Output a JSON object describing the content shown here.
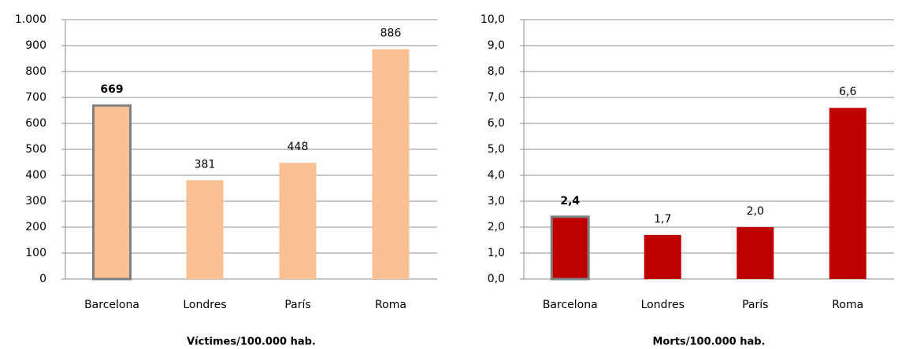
{
  "chart_data": [
    {
      "type": "bar",
      "x_label": "Víctimes/100.000 hab.",
      "categories": [
        "Barcelona",
        "Londres",
        "París",
        "Roma"
      ],
      "values": [
        669,
        381,
        448,
        886
      ],
      "color": "#f9c093",
      "highlight": 0,
      "ylim": [
        0,
        1000
      ],
      "yticks": [
        0,
        100,
        200,
        300,
        400,
        500,
        600,
        700,
        800,
        900,
        {
          "value": 1000,
          "label": "1.000"
        }
      ],
      "grid": true
    },
    {
      "type": "bar",
      "x_label": "Morts/100.000 hab.",
      "categories": [
        "Barcelona",
        "Londres",
        "París",
        "Roma"
      ],
      "values": [
        2.4,
        1.7,
        2.0,
        6.6
      ],
      "value_labels": [
        "2,4",
        "1,7",
        "2,0",
        "6,6"
      ],
      "color": "#c00000",
      "highlight": 0,
      "ylim": [
        0,
        10
      ],
      "yticks": [
        {
          "value": 0,
          "label": "0,0"
        },
        {
          "value": 1,
          "label": "1,0"
        },
        {
          "value": 2,
          "label": "2,0"
        },
        {
          "value": 3,
          "label": "3,0"
        },
        {
          "value": 4,
          "label": "4,0"
        },
        {
          "value": 5,
          "label": "5,0"
        },
        {
          "value": 6,
          "label": "6,0"
        },
        {
          "value": 7,
          "label": "7,0"
        },
        {
          "value": 8,
          "label": "8,0"
        },
        {
          "value": 9,
          "label": "9,0"
        },
        {
          "value": 10,
          "label": "10,0"
        }
      ],
      "grid": true
    }
  ]
}
